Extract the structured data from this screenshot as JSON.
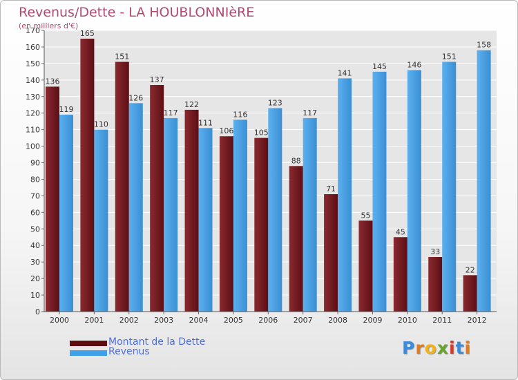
{
  "title": "Revenus/Dette - LA HOUBLONNIèRE",
  "subtitle": "(en milliers d'€)",
  "colors": {
    "debt": "#7a1b22",
    "revenue": "#4aa3e6",
    "title": "#b14a73",
    "legend_text": "#4f6fd8"
  },
  "legend": [
    {
      "label": "Montant de la Dette",
      "color": "#5e0c10"
    },
    {
      "label": "Revenus",
      "color": "#3ea0e8"
    }
  ],
  "logo": {
    "text": "Proxiti",
    "letters": [
      "P",
      "r",
      "o",
      "x",
      "i",
      "t",
      "i"
    ],
    "colors": [
      "#3b8bd8",
      "#e07b20",
      "#f2b21a",
      "#66a52a",
      "#d83a2a",
      "#3b8bd8",
      "#e07b20"
    ]
  },
  "chart_data": {
    "type": "bar",
    "categories": [
      "2000",
      "2001",
      "2002",
      "2003",
      "2004",
      "2005",
      "2006",
      "2007",
      "2008",
      "2009",
      "2010",
      "2011",
      "2012"
    ],
    "series": [
      {
        "name": "Montant de la Dette",
        "values": [
          136,
          165,
          151,
          137,
          122,
          106,
          105,
          88,
          71,
          55,
          45,
          33,
          22
        ]
      },
      {
        "name": "Revenus",
        "values": [
          119,
          110,
          126,
          117,
          111,
          116,
          123,
          117,
          141,
          145,
          146,
          151,
          158
        ]
      }
    ],
    "ylim": [
      0,
      170
    ],
    "ytick_step": 10,
    "grid": true,
    "legend_position": "bottom-left"
  }
}
